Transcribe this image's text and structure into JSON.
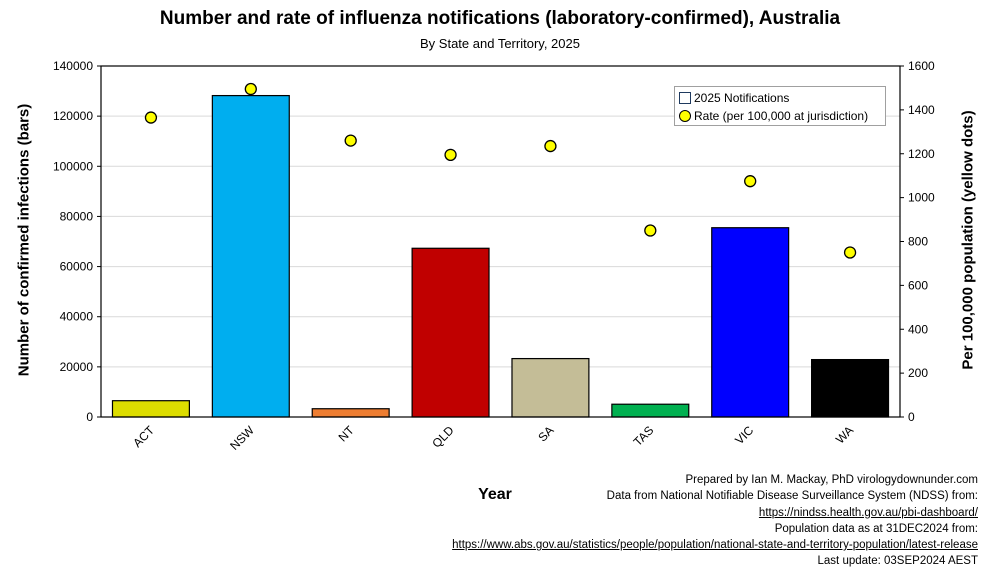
{
  "title": "Number and rate of influenza notifications (laboratory-confirmed), Australia",
  "subtitle": "By State and Territory, 2025",
  "legend": {
    "bars_label": "2025 Notifications",
    "dots_label": "Rate (per 100,000 at jurisdiction)"
  },
  "notes": {
    "line1": "Prepared by Ian M. Mackay, PhD virologydownunder.com",
    "line2": "Data from National Notifiable Disease Surveillance System (NDSS) from:",
    "line3": "https://nindss.health.gov.au/pbi-dashboard/",
    "line4": "Population data as at 31DEC2024 from:",
    "line5": "https://www.abs.gov.au/statistics/people/population/national-state-and-territory-population/latest-release",
    "line6": "Last update: 03SEP2024 AEST"
  },
  "chart_data": {
    "type": "bar",
    "title": "Number and rate of influenza notifications (laboratory-confirmed), Australia",
    "subtitle": "By State and Territory, 2025",
    "xlabel": "Year",
    "ylabel": "Number of confirmed infections (bars)",
    "y2label": "Per 100,000 population (yellow dots)",
    "categories": [
      "ACT",
      "NSW",
      "NT",
      "QLD",
      "SA",
      "TAS",
      "VIC",
      "WA"
    ],
    "ylim": [
      0,
      140000
    ],
    "y2lim": [
      0,
      1600
    ],
    "yticks": [
      0,
      20000,
      40000,
      60000,
      80000,
      100000,
      120000,
      140000
    ],
    "y2ticks": [
      0,
      200,
      400,
      600,
      800,
      1000,
      1200,
      1400,
      1600
    ],
    "grid": true,
    "legend_position": "top-right",
    "series": [
      {
        "name": "2025 Notifications",
        "type": "bar",
        "values": [
          6500,
          128200,
          3300,
          67300,
          23300,
          5100,
          75500,
          22900
        ],
        "colors": [
          "#dddd00",
          "#00aeef",
          "#ed7d31",
          "#c00000",
          "#c4bd97",
          "#00b050",
          "#0000ff",
          "#000000"
        ]
      },
      {
        "name": "Rate (per 100,000 at jurisdiction)",
        "type": "scatter",
        "axis": "right",
        "values": [
          1365,
          1495,
          1260,
          1195,
          1235,
          850,
          1075,
          750
        ],
        "color": "#ffff00"
      }
    ]
  }
}
